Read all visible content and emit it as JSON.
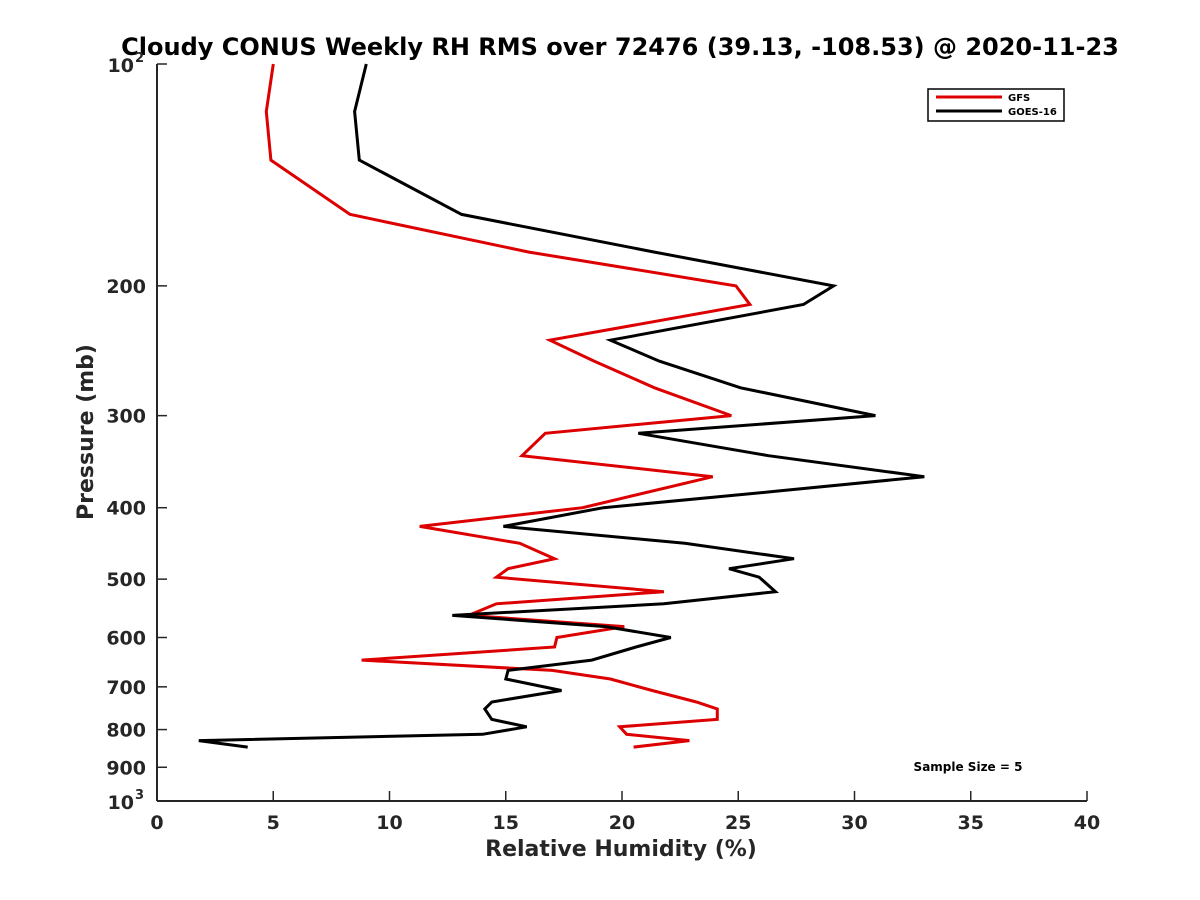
{
  "chart_data": {
    "type": "line",
    "title": "Cloudy CONUS Weekly RH RMS over 72476 (39.13, -108.53) @ 2020-11-23",
    "xlabel": "Relative Humidity (%)",
    "ylabel": "Pressure (mb)",
    "xlim": [
      0,
      40
    ],
    "ylim": [
      100,
      1000
    ],
    "y_scale": "log",
    "y_reversed": true,
    "grid": false,
    "legend_position": "top-right",
    "x_ticks": [
      "0",
      "5",
      "10",
      "15",
      "20",
      "25",
      "30",
      "35",
      "40"
    ],
    "y_ticks": [
      {
        "value": 100,
        "label": "10",
        "sup": "2"
      },
      {
        "value": 200,
        "label": "200",
        "sup": ""
      },
      {
        "value": 300,
        "label": "300",
        "sup": ""
      },
      {
        "value": 400,
        "label": "400",
        "sup": ""
      },
      {
        "value": 500,
        "label": "500",
        "sup": ""
      },
      {
        "value": 600,
        "label": "600",
        "sup": ""
      },
      {
        "value": 700,
        "label": "700",
        "sup": ""
      },
      {
        "value": 800,
        "label": "800",
        "sup": ""
      },
      {
        "value": 900,
        "label": "900",
        "sup": ""
      },
      {
        "value": 1000,
        "label": "10",
        "sup": "3"
      }
    ],
    "annotation": "Sample Size = 5",
    "series": [
      {
        "name": "GFS",
        "color": "#dd0000",
        "points": [
          [
            5.0,
            100
          ],
          [
            4.7,
            116
          ],
          [
            4.9,
            135
          ],
          [
            8.3,
            160
          ],
          [
            16.0,
            180
          ],
          [
            24.9,
            200
          ],
          [
            25.5,
            212
          ],
          [
            16.9,
            237
          ],
          [
            18.8,
            253
          ],
          [
            21.4,
            275
          ],
          [
            24.7,
            300
          ],
          [
            16.7,
            317
          ],
          [
            15.7,
            340
          ],
          [
            23.9,
            363
          ],
          [
            18.3,
            400
          ],
          [
            11.3,
            424
          ],
          [
            15.6,
            447
          ],
          [
            17.1,
            469
          ],
          [
            15.1,
            484
          ],
          [
            14.6,
            497
          ],
          [
            21.8,
            520
          ],
          [
            14.6,
            540
          ],
          [
            13.4,
            560
          ],
          [
            20.1,
            580
          ],
          [
            17.2,
            600
          ],
          [
            17.1,
            618
          ],
          [
            8.8,
            644
          ],
          [
            17.0,
            665
          ],
          [
            19.5,
            683
          ],
          [
            21.3,
            708
          ],
          [
            23.2,
            734
          ],
          [
            24.1,
            750
          ],
          [
            24.1,
            775
          ],
          [
            19.9,
            793
          ],
          [
            20.2,
            812
          ],
          [
            22.9,
            828
          ],
          [
            20.5,
            845
          ]
        ]
      },
      {
        "name": "GOES-16",
        "color": "#000000",
        "points": [
          [
            9.0,
            100
          ],
          [
            8.5,
            116
          ],
          [
            8.7,
            135
          ],
          [
            13.1,
            160
          ],
          [
            21.4,
            180
          ],
          [
            29.1,
            200
          ],
          [
            27.8,
            212
          ],
          [
            19.5,
            237
          ],
          [
            21.6,
            253
          ],
          [
            25.1,
            275
          ],
          [
            30.9,
            300
          ],
          [
            20.7,
            317
          ],
          [
            26.3,
            340
          ],
          [
            33.0,
            363
          ],
          [
            26.6,
            380
          ],
          [
            19.2,
            400
          ],
          [
            14.9,
            424
          ],
          [
            22.7,
            447
          ],
          [
            27.4,
            469
          ],
          [
            24.6,
            484
          ],
          [
            25.9,
            497
          ],
          [
            26.6,
            520
          ],
          [
            21.8,
            540
          ],
          [
            12.7,
            560
          ],
          [
            19.3,
            580
          ],
          [
            22.1,
            600
          ],
          [
            20.6,
            618
          ],
          [
            18.7,
            644
          ],
          [
            15.1,
            665
          ],
          [
            15.0,
            683
          ],
          [
            17.4,
            708
          ],
          [
            14.4,
            734
          ],
          [
            14.1,
            750
          ],
          [
            14.4,
            775
          ],
          [
            15.9,
            793
          ],
          [
            14.0,
            812
          ],
          [
            1.8,
            828
          ],
          [
            3.9,
            845
          ]
        ]
      }
    ]
  }
}
